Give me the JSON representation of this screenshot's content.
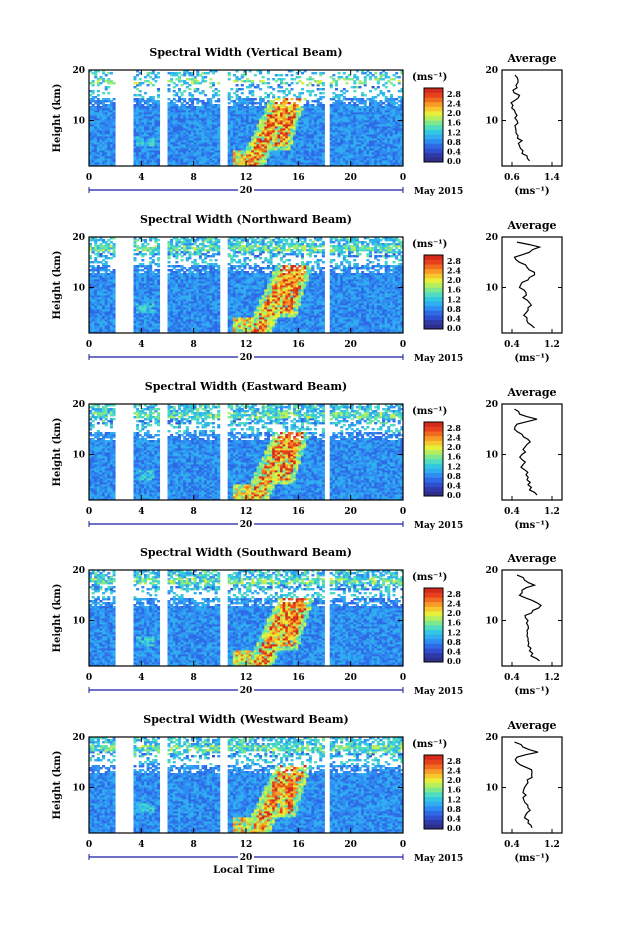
{
  "chart_data": [
    {
      "type": "heatmap",
      "title": "Spectral Width (Vertical Beam)",
      "ylabel": "Height (km)",
      "xlabel": "",
      "x_ticks": [
        "0",
        "4",
        "8",
        "12",
        "16",
        "20",
        "0"
      ],
      "date_label": "20",
      "month_year": "May 2015",
      "y_ticks": [
        "20",
        "10"
      ],
      "ylim": [
        1,
        20
      ],
      "xlim": [
        0,
        24
      ],
      "colorbar": {
        "unit": "(ms⁻¹)",
        "ticks": [
          "2.8",
          "2.4",
          "2.0",
          "1.6",
          "1.2",
          "0.8",
          "0.4",
          "0.0"
        ],
        "range": [
          0,
          2.8
        ],
        "colors": [
          "#2e2f8a",
          "#2f3aa8",
          "#2f4fd0",
          "#2f6ae6",
          "#2f8cf2",
          "#30aef0",
          "#34c8e0",
          "#4fdcc0",
          "#7fe88e",
          "#b5ef5e",
          "#e6ef3a",
          "#f7c82e",
          "#f79a26",
          "#f06a20",
          "#e6401d",
          "#d42a1c"
        ]
      },
      "data_gaps_h": [
        [
          2,
          3.4
        ],
        [
          5.4,
          6
        ],
        [
          10,
          10.6
        ],
        [
          18,
          18.5
        ]
      ],
      "profile": {
        "title": "Average",
        "x_ticks": [
          "0.6",
          "1.4"
        ],
        "xlim": [
          0.4,
          1.6
        ],
        "y_ticks": [
          "20",
          "10"
        ],
        "xlabel": "(ms⁻¹)",
        "heights": [
          2,
          3,
          4,
          5,
          6,
          7,
          8,
          9,
          10,
          11,
          12,
          13,
          14,
          15,
          16,
          17,
          18,
          19
        ],
        "values": [
          0.95,
          0.9,
          0.82,
          0.75,
          0.8,
          0.72,
          0.68,
          0.66,
          0.7,
          0.7,
          0.65,
          0.62,
          0.66,
          0.75,
          0.62,
          0.68,
          0.72,
          0.66
        ]
      }
    },
    {
      "type": "heatmap",
      "title": "Spectral Width (Northward Beam)",
      "ylabel": "Height (km)",
      "xlabel": "",
      "x_ticks": [
        "0",
        "4",
        "8",
        "12",
        "16",
        "20",
        "0"
      ],
      "date_label": "20",
      "month_year": "May 2015",
      "y_ticks": [
        "20",
        "10"
      ],
      "ylim": [
        1,
        20
      ],
      "xlim": [
        0,
        24
      ],
      "colorbar": {
        "unit": "(ms⁻¹)",
        "ticks": [
          "2.8",
          "2.4",
          "2.0",
          "1.6",
          "1.2",
          "0.8",
          "0.4",
          "0.0"
        ],
        "range": [
          0,
          2.8
        ],
        "colors": [
          "#2e2f8a",
          "#2f3aa8",
          "#2f4fd0",
          "#2f6ae6",
          "#2f8cf2",
          "#30aef0",
          "#34c8e0",
          "#4fdcc0",
          "#7fe88e",
          "#b5ef5e",
          "#e6ef3a",
          "#f7c82e",
          "#f79a26",
          "#f06a20",
          "#e6401d",
          "#d42a1c"
        ]
      },
      "data_gaps_h": [
        [
          2,
          3.4
        ],
        [
          5.4,
          6
        ],
        [
          10,
          10.6
        ],
        [
          18,
          18.5
        ]
      ],
      "profile": {
        "title": "Average",
        "x_ticks": [
          "0.4",
          "1.2"
        ],
        "xlim": [
          0.2,
          1.4
        ],
        "y_ticks": [
          "20",
          "10"
        ],
        "xlabel": "(ms⁻¹)",
        "heights": [
          2,
          3,
          4,
          5,
          6,
          7,
          8,
          9,
          10,
          11,
          12,
          13,
          14,
          15,
          16,
          17,
          18,
          19
        ],
        "values": [
          0.85,
          0.72,
          0.7,
          0.68,
          0.72,
          0.75,
          0.62,
          0.68,
          0.55,
          0.6,
          0.75,
          0.85,
          0.7,
          0.55,
          0.45,
          0.75,
          0.95,
          0.5
        ]
      }
    },
    {
      "type": "heatmap",
      "title": "Spectral Width (Eastward Beam)",
      "ylabel": "Height (km)",
      "xlabel": "",
      "x_ticks": [
        "0",
        "4",
        "8",
        "12",
        "16",
        "20",
        "0"
      ],
      "date_label": "20",
      "month_year": "May 2015",
      "y_ticks": [
        "20",
        "10"
      ],
      "ylim": [
        1,
        20
      ],
      "xlim": [
        0,
        24
      ],
      "colorbar": {
        "unit": "(ms⁻¹)",
        "ticks": [
          "2.8",
          "2.4",
          "2.0",
          "1.6",
          "1.2",
          "0.8",
          "0.4",
          "0.0"
        ],
        "range": [
          0,
          2.8
        ],
        "colors": [
          "#2e2f8a",
          "#2f3aa8",
          "#2f4fd0",
          "#2f6ae6",
          "#2f8cf2",
          "#30aef0",
          "#34c8e0",
          "#4fdcc0",
          "#7fe88e",
          "#b5ef5e",
          "#e6ef3a",
          "#f7c82e",
          "#f79a26",
          "#f06a20",
          "#e6401d",
          "#d42a1c"
        ]
      },
      "data_gaps_h": [
        [
          2,
          3.4
        ],
        [
          5.4,
          6
        ],
        [
          10,
          10.6
        ],
        [
          18,
          18.5
        ]
      ],
      "profile": {
        "title": "Average",
        "x_ticks": [
          "0.4",
          "1.2"
        ],
        "xlim": [
          0.2,
          1.4
        ],
        "y_ticks": [
          "20",
          "10"
        ],
        "xlabel": "(ms⁻¹)",
        "heights": [
          2,
          3,
          4,
          5,
          6,
          7,
          8,
          9,
          10,
          11,
          12,
          13,
          14,
          15,
          16,
          17,
          18,
          19
        ],
        "values": [
          0.9,
          0.75,
          0.72,
          0.7,
          0.68,
          0.65,
          0.62,
          0.6,
          0.6,
          0.62,
          0.7,
          0.72,
          0.6,
          0.45,
          0.5,
          0.9,
          0.55,
          0.45
        ]
      }
    },
    {
      "type": "heatmap",
      "title": "Spectral Width (Southward Beam)",
      "ylabel": "Height (km)",
      "xlabel": "",
      "x_ticks": [
        "0",
        "4",
        "8",
        "12",
        "16",
        "20",
        "0"
      ],
      "date_label": "20",
      "month_year": "May 2015",
      "y_ticks": [
        "20",
        "10"
      ],
      "ylim": [
        1,
        20
      ],
      "xlim": [
        0,
        24
      ],
      "colorbar": {
        "unit": "(ms⁻¹)",
        "ticks": [
          "2.8",
          "2.4",
          "2.0",
          "1.6",
          "1.2",
          "0.8",
          "0.4",
          "0.0"
        ],
        "range": [
          0,
          2.8
        ],
        "colors": [
          "#2e2f8a",
          "#2f3aa8",
          "#2f4fd0",
          "#2f6ae6",
          "#2f8cf2",
          "#30aef0",
          "#34c8e0",
          "#4fdcc0",
          "#7fe88e",
          "#b5ef5e",
          "#e6ef3a",
          "#f7c82e",
          "#f79a26",
          "#f06a20",
          "#e6401d",
          "#d42a1c"
        ]
      },
      "data_gaps_h": [
        [
          2,
          3.4
        ],
        [
          5.4,
          6
        ],
        [
          10,
          10.6
        ],
        [
          18,
          18.5
        ]
      ],
      "profile": {
        "title": "Average",
        "x_ticks": [
          "0.4",
          "1.2"
        ],
        "xlim": [
          0.2,
          1.4
        ],
        "y_ticks": [
          "20",
          "10"
        ],
        "xlabel": "(ms⁻¹)",
        "heights": [
          2,
          3,
          4,
          5,
          6,
          7,
          8,
          9,
          10,
          11,
          12,
          13,
          14,
          15,
          16,
          17,
          18,
          19
        ],
        "values": [
          0.95,
          0.78,
          0.75,
          0.72,
          0.72,
          0.7,
          0.7,
          0.72,
          0.72,
          0.66,
          0.82,
          0.98,
          0.8,
          0.55,
          0.6,
          0.85,
          0.65,
          0.5
        ]
      }
    },
    {
      "type": "heatmap",
      "title": "Spectral Width (Westward Beam)",
      "ylabel": "Height (km)",
      "xlabel": "Local Time",
      "x_ticks": [
        "0",
        "4",
        "8",
        "12",
        "16",
        "20",
        "0"
      ],
      "date_label": "20",
      "month_year": "May 2015",
      "y_ticks": [
        "20",
        "10"
      ],
      "ylim": [
        1,
        20
      ],
      "xlim": [
        0,
        24
      ],
      "colorbar": {
        "unit": "(ms⁻¹)",
        "ticks": [
          "2.8",
          "2.4",
          "2.0",
          "1.6",
          "1.2",
          "0.8",
          "0.4",
          "0.0"
        ],
        "range": [
          0,
          2.8
        ],
        "colors": [
          "#2e2f8a",
          "#2f3aa8",
          "#2f4fd0",
          "#2f6ae6",
          "#2f8cf2",
          "#30aef0",
          "#34c8e0",
          "#4fdcc0",
          "#7fe88e",
          "#b5ef5e",
          "#e6ef3a",
          "#f7c82e",
          "#f79a26",
          "#f06a20",
          "#e6401d",
          "#d42a1c"
        ]
      },
      "data_gaps_h": [
        [
          2,
          3.4
        ],
        [
          5.4,
          6
        ],
        [
          10,
          10.6
        ],
        [
          18,
          18.5
        ]
      ],
      "profile": {
        "title": "Average",
        "x_ticks": [
          "0.4",
          "1.2"
        ],
        "xlim": [
          0.2,
          1.4
        ],
        "y_ticks": [
          "20",
          "10"
        ],
        "xlabel": "(ms⁻¹)",
        "heights": [
          2,
          3,
          4,
          5,
          6,
          7,
          8,
          9,
          10,
          11,
          12,
          13,
          14,
          15,
          16,
          17,
          18,
          19
        ],
        "values": [
          0.8,
          0.72,
          0.65,
          0.7,
          0.72,
          0.66,
          0.62,
          0.62,
          0.65,
          0.72,
          0.8,
          0.8,
          0.68,
          0.5,
          0.5,
          0.92,
          0.62,
          0.45
        ]
      }
    }
  ]
}
